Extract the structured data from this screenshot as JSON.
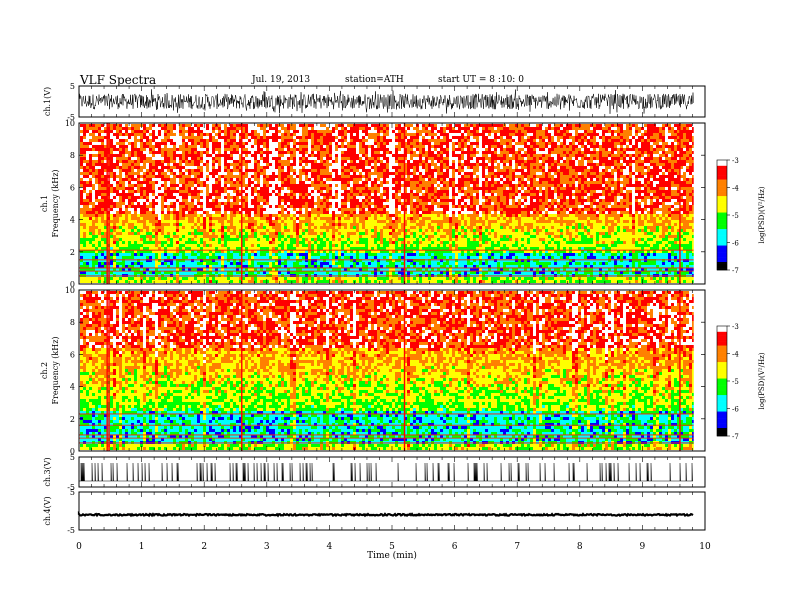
{
  "header": {
    "title": "VLF Spectra",
    "date": "Jul. 19, 2013",
    "station": "station=ATH",
    "start": "start UT = 8 :10: 0"
  },
  "chart_data": [
    {
      "type": "line",
      "name": "ch1-waveform",
      "ylabel": "ch.1(V)",
      "ylim": [
        -5,
        5
      ],
      "yticks": [
        "5",
        "-5"
      ],
      "xlim": [
        0,
        10
      ],
      "data_extent_min": 9.82,
      "amplitude_range": [
        -2.5,
        2.5
      ],
      "color": "#000000"
    },
    {
      "type": "heatmap",
      "name": "ch1-spectrogram",
      "ylabel_channel": "ch.1",
      "ylabel": "Frequency (kHz)",
      "ylim": [
        0,
        10
      ],
      "yticks": [
        "0",
        "2",
        "4",
        "6",
        "8",
        "10"
      ],
      "xlim": [
        0,
        10
      ],
      "data_extent_min": 9.82,
      "colorbar": {
        "label": "log(PSD)(V²/Hz)",
        "range": [
          -7,
          -3
        ],
        "ticks": [
          "-3",
          "-4",
          "-5",
          "-6",
          "-7"
        ],
        "colors": [
          "#000000",
          "#0000ff",
          "#00ffff",
          "#00ff00",
          "#ffff00",
          "#ff8000",
          "#ff0000",
          "#ffffff"
        ]
      },
      "features": {
        "high_power_above_kHz": 4.5,
        "mid_band_kHz": [
          2,
          4.5
        ],
        "low_band_kHz": [
          0.5,
          2
        ],
        "harmonic_lines_kHz": [
          0.5,
          0.8,
          1.0,
          1.5,
          2.1
        ],
        "sferic_times_min": [
          0.45,
          0.48,
          2.6,
          5.2,
          9.6
        ]
      }
    },
    {
      "type": "heatmap",
      "name": "ch2-spectrogram",
      "ylabel_channel": "ch.2",
      "ylabel": "Frequency (kHz)",
      "ylim": [
        0,
        10
      ],
      "yticks": [
        "0",
        "2",
        "4",
        "6",
        "8",
        "10"
      ],
      "xlim": [
        0,
        10
      ],
      "data_extent_min": 9.82,
      "colorbar": {
        "label": "log(PSD)(V²/Hz)",
        "range": [
          -7,
          -3
        ],
        "ticks": [
          "-3",
          "-4",
          "-5",
          "-6",
          "-7"
        ],
        "colors": [
          "#000000",
          "#0000ff",
          "#00ffff",
          "#00ff00",
          "#ffff00",
          "#ff8000",
          "#ff0000",
          "#ffffff"
        ]
      },
      "features": {
        "high_power_above_kHz": 6.5,
        "mid_band_kHz": [
          2.5,
          6.5
        ],
        "low_band_kHz": [
          0.5,
          2.5
        ],
        "harmonic_lines_kHz": [
          0.5,
          0.8,
          1.0,
          1.6,
          2.3
        ],
        "sferic_times_min": [
          0.45,
          0.48,
          2.6,
          5.2,
          9.6
        ]
      }
    },
    {
      "type": "line",
      "name": "ch3-waveform",
      "ylabel": "ch.3(V)",
      "ylim": [
        -5,
        5
      ],
      "yticks": [
        "5",
        "-5"
      ],
      "xlim": [
        0,
        10
      ],
      "data_extent_min": 9.82,
      "baseline_V": -3,
      "spike_peak_V": 3,
      "color": "#000000"
    },
    {
      "type": "line",
      "name": "ch4-waveform",
      "ylabel": "ch.4(V)",
      "ylim": [
        -5,
        5
      ],
      "yticks": [
        "5",
        "-5"
      ],
      "xlim": [
        0,
        10
      ],
      "data_extent_min": 9.82,
      "level_V": -1,
      "xlabel": "Time (min)",
      "xticks": [
        "0",
        "1",
        "2",
        "3",
        "4",
        "5",
        "6",
        "7",
        "8",
        "9",
        "10"
      ],
      "color": "#000000"
    }
  ]
}
